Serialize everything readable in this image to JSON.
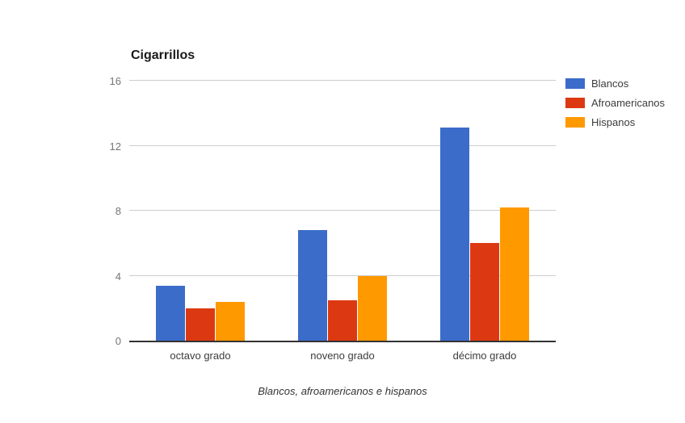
{
  "chart_data": {
    "type": "bar",
    "title": "Cigarrillos",
    "caption": "Blancos, afroamericanos e hispanos",
    "categories": [
      "octavo grado",
      "noveno grado",
      "décimo grado"
    ],
    "series": [
      {
        "name": "Blancos",
        "color": "#3B6CC9",
        "values": [
          3.4,
          6.8,
          13.1
        ]
      },
      {
        "name": "Afroamericanos",
        "color": "#DC3912",
        "values": [
          2.0,
          2.5,
          6.0
        ]
      },
      {
        "name": "Hispanos",
        "color": "#FF9900",
        "values": [
          2.4,
          4.0,
          8.2
        ]
      }
    ],
    "y_ticks": [
      0,
      4,
      8,
      12,
      16
    ],
    "ylim": [
      0,
      16
    ],
    "grid": true,
    "legend_position": "right",
    "layout_colors": {
      "background": "#FFFFFF",
      "gridline": "#CCCCCC",
      "baseline": "#333333",
      "y_tick_text": "#757575",
      "x_tick_text": "#3C3C3C",
      "title_text": "#1A1A1A"
    }
  }
}
